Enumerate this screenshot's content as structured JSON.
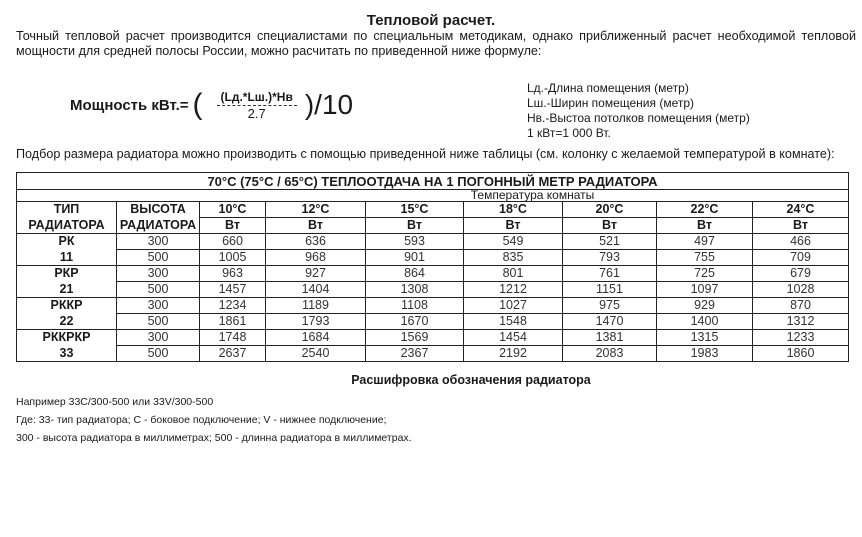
{
  "title": "Тепловой расчет.",
  "intro": "Точный тепловой расчет производится специалистами по специальным методикам, однако приближенный расчет необходимой тепловой мощности для средней полосы России, можно расчитать по приведенной ниже формуле:",
  "formula": {
    "label": "Мощность кВт.=",
    "open": "(",
    "numerator": "(Lд.*Lш.)*Hв",
    "denominator": "2.7",
    "tail": ")/10"
  },
  "legend": [
    "Lд.-Длина помещения (метр)",
    "Lш.-Ширин помещения (метр)",
    "Нв.-Выстоа потолков помещения (метр)",
    "1 кВт=1 000 Вт."
  ],
  "select_text": "Подбор размера радиатора можно производить с помощью приведенной ниже таблицы (см. колонку с желаемой температурой в комнате):",
  "table": {
    "title": "70°C (75°C / 65°C) ТЕПЛООТДАЧА НА 1 ПОГОННЫЙ МЕТР РАДИАТОРА",
    "subtitle": "Температура комнаты",
    "type_header": [
      "ТИП",
      "РАДИАТОРА"
    ],
    "height_header": [
      "ВЫСОТА",
      "РАДИАТОРА"
    ],
    "temps": [
      "10°C",
      "12°C",
      "15°C",
      "18°C",
      "20°C",
      "22°C",
      "24°C"
    ],
    "unit": "Вт",
    "groups": [
      {
        "type": [
          "РК",
          "11"
        ],
        "rows": [
          {
            "height": "300",
            "values": [
              "660",
              "636",
              "593",
              "549",
              "521",
              "497",
              "466"
            ]
          },
          {
            "height": "500",
            "values": [
              "1005",
              "968",
              "901",
              "835",
              "793",
              "755",
              "709"
            ]
          }
        ]
      },
      {
        "type": [
          "РКР",
          "21"
        ],
        "rows": [
          {
            "height": "300",
            "values": [
              "963",
              "927",
              "864",
              "801",
              "761",
              "725",
              "679"
            ]
          },
          {
            "height": "500",
            "values": [
              "1457",
              "1404",
              "1308",
              "1212",
              "1151",
              "1097",
              "1028"
            ]
          }
        ]
      },
      {
        "type": [
          "РККР",
          "22"
        ],
        "rows": [
          {
            "height": "300",
            "values": [
              "1234",
              "1189",
              "1108",
              "1027",
              "975",
              "929",
              "870"
            ]
          },
          {
            "height": "500",
            "values": [
              "1861",
              "1793",
              "1670",
              "1548",
              "1470",
              "1400",
              "1312"
            ]
          }
        ]
      },
      {
        "type": [
          "РККРКР",
          "33"
        ],
        "rows": [
          {
            "height": "300",
            "values": [
              "1748",
              "1684",
              "1569",
              "1454",
              "1381",
              "1315",
              "1233"
            ]
          },
          {
            "height": "500",
            "values": [
              "2637",
              "2540",
              "2367",
              "2192",
              "2083",
              "1983",
              "1860"
            ]
          }
        ]
      }
    ]
  },
  "decode": {
    "title": "Расшифровка обозначения радиатора",
    "lines": [
      "Например 33C/300-500 или 33V/300-500",
      "Где: 33- тип радиатора; C - боковое подключение; V - нижнее подключение;",
      "300 - высота радиатора в миллиметрах; 500 - длинна радиатора в миллиметрах."
    ]
  }
}
